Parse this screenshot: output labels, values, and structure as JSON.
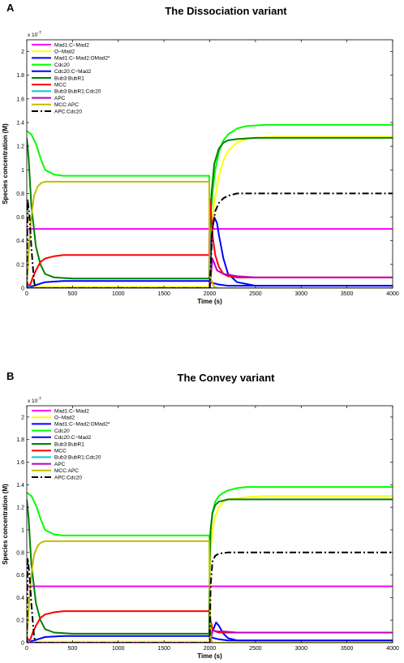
{
  "chart_data": [
    {
      "type": "line",
      "panel_letter": "A",
      "title": "The Dissociation variant",
      "xlabel": "Time (s)",
      "ylabel": "Species concentration (M)",
      "y_exponent_label": "x 10",
      "y_exponent_power": "-7",
      "xlim": [
        0,
        4000
      ],
      "ylim": [
        0,
        2.1
      ],
      "xticks": [
        "0",
        "500",
        "1000",
        "1500",
        "2000",
        "2500",
        "3000",
        "3500",
        "4000"
      ],
      "yticks": [
        "0",
        "0.2",
        "0.4",
        "0.6",
        "0.8",
        "1",
        "1.2",
        "1.4",
        "1.6",
        "1.8",
        "2"
      ],
      "legend_position": "top-left",
      "series": [
        {
          "name": "Mad1:C−Mad2",
          "color": "#ff00ff",
          "dash": "",
          "x": [
            0,
            10,
            1995,
            2000,
            4000
          ],
          "y": [
            0.5,
            0.5,
            0.5,
            0.5,
            0.5
          ]
        },
        {
          "name": "O−Mad2",
          "color": "#ffff00",
          "dash": "",
          "x": [
            0,
            20,
            1995,
            2000,
            2005,
            2020,
            2050,
            2100,
            2150,
            2200,
            2300,
            2400,
            2500,
            2700,
            3000,
            4000
          ],
          "y": [
            0,
            0.01,
            0.01,
            0.3,
            0.45,
            0.55,
            0.72,
            0.95,
            1.08,
            1.16,
            1.23,
            1.26,
            1.27,
            1.28,
            1.28,
            1.28
          ]
        },
        {
          "name": "Mad1:C−Mad2:OMad2*",
          "color": "#0000ff",
          "dash": "",
          "x": [
            0,
            20,
            1995,
            2000,
            2020,
            2050,
            2080,
            2100,
            2150,
            2200,
            2300,
            2500,
            3000,
            4000
          ],
          "y": [
            0,
            0.0,
            0.0,
            0.0,
            0.45,
            0.6,
            0.55,
            0.45,
            0.25,
            0.12,
            0.05,
            0.02,
            0.02,
            0.02
          ]
        },
        {
          "name": "Cdc20",
          "color": "#00ff00",
          "dash": "",
          "x": [
            0,
            50,
            100,
            150,
            200,
            300,
            400,
            600,
            1000,
            1995,
            2000,
            2010,
            2030,
            2060,
            2100,
            2150,
            2200,
            2300,
            2400,
            2600,
            3000,
            4000
          ],
          "y": [
            1.33,
            1.3,
            1.22,
            1.1,
            1.0,
            0.96,
            0.95,
            0.95,
            0.95,
            0.95,
            0.55,
            0.6,
            0.8,
            1.0,
            1.15,
            1.25,
            1.3,
            1.35,
            1.37,
            1.38,
            1.38,
            1.38
          ]
        },
        {
          "name": "Cdc20:C−Mad2",
          "color": "#0000ff",
          "dash": "",
          "x": [
            0,
            30,
            80,
            200,
            400,
            1000,
            1995,
            2000,
            2050,
            2100,
            2200,
            2500,
            4000
          ],
          "y": [
            0.05,
            0.01,
            0.02,
            0.05,
            0.06,
            0.06,
            0.06,
            0.05,
            0.04,
            0.03,
            0.02,
            0.02,
            0.02
          ]
        },
        {
          "name": "Bub3:BubR1",
          "color": "#008000",
          "dash": "",
          "x": [
            0,
            20,
            50,
            100,
            150,
            200,
            300,
            500,
            1000,
            1995,
            2000,
            2020,
            2050,
            2100,
            2150,
            2200,
            2300,
            2500,
            3000,
            4000
          ],
          "y": [
            1.27,
            1.1,
            0.7,
            0.35,
            0.2,
            0.12,
            0.09,
            0.08,
            0.08,
            0.08,
            0.45,
            0.8,
            1.05,
            1.18,
            1.23,
            1.25,
            1.26,
            1.27,
            1.27,
            1.27
          ]
        },
        {
          "name": "MCC",
          "color": "#ff0000",
          "dash": "",
          "x": [
            0,
            20,
            40,
            60,
            100,
            150,
            200,
            300,
            400,
            1000,
            1995,
            2000,
            2010,
            2030,
            2060,
            2100,
            2150,
            2200,
            2300,
            2500,
            3000,
            4000
          ],
          "y": [
            0.05,
            0.02,
            0.03,
            0.08,
            0.15,
            0.22,
            0.25,
            0.27,
            0.28,
            0.28,
            0.28,
            0.75,
            0.7,
            0.45,
            0.28,
            0.18,
            0.12,
            0.1,
            0.09,
            0.09,
            0.09,
            0.09
          ]
        },
        {
          "name": "Bub3:BubR1:Cdc20",
          "color": "#00cccc",
          "dash": "",
          "x": [
            0,
            10,
            30,
            60,
            1995,
            2000,
            2100,
            4000
          ],
          "y": [
            0.03,
            0.02,
            0.005,
            0.0,
            0.0,
            0.0,
            0.0,
            0.0
          ]
        },
        {
          "name": "APC",
          "color": "#bf00bf",
          "dash": "",
          "x": [
            0,
            20,
            40,
            1995,
            2000,
            2030,
            2080,
            2150,
            2300,
            2500,
            4000
          ],
          "y": [
            0.02,
            0.0,
            0.0,
            0.0,
            0.0,
            0.25,
            0.15,
            0.12,
            0.1,
            0.09,
            0.09
          ]
        },
        {
          "name": "MCC:APC",
          "color": "#bfbf00",
          "dash": "",
          "x": [
            0,
            20,
            50,
            80,
            120,
            160,
            200,
            300,
            500,
            1000,
            1995,
            2000,
            2050,
            2100,
            2200,
            4000
          ],
          "y": [
            0.0,
            0.3,
            0.6,
            0.78,
            0.86,
            0.89,
            0.9,
            0.9,
            0.9,
            0.9,
            0.9,
            0.1,
            0.01,
            0.0,
            0.0,
            0.0
          ]
        },
        {
          "name": "APC:Cdc20",
          "color": "#000000",
          "dash": "8,3,2,3",
          "x": [
            0,
            10,
            30,
            50,
            80,
            100,
            150,
            1995,
            2000,
            2030,
            2060,
            2100,
            2150,
            2200,
            2300,
            2500,
            3000,
            4000
          ],
          "y": [
            0.0,
            0.75,
            0.6,
            0.35,
            0.05,
            0.0,
            0.0,
            0.0,
            0.0,
            0.5,
            0.65,
            0.72,
            0.76,
            0.78,
            0.8,
            0.8,
            0.8,
            0.8
          ]
        }
      ]
    },
    {
      "type": "line",
      "panel_letter": "B",
      "title": "The Convey variant",
      "xlabel": "Time (s)",
      "ylabel": "Species concentration (M)",
      "y_exponent_label": "x 10",
      "y_exponent_power": "-7",
      "xlim": [
        0,
        4000
      ],
      "ylim": [
        0,
        2.1
      ],
      "xticks": [
        "0",
        "500",
        "1000",
        "1500",
        "2000",
        "2500",
        "3000",
        "3500",
        "4000"
      ],
      "yticks": [
        "0",
        "0.2",
        "0.4",
        "0.6",
        "0.8",
        "1",
        "1.2",
        "1.4",
        "1.6",
        "1.8",
        "2"
      ],
      "legend_position": "top-left",
      "series": [
        {
          "name": "Mad1:C−Mad2",
          "color": "#ff00ff",
          "dash": "",
          "x": [
            0,
            10,
            1995,
            2000,
            4000
          ],
          "y": [
            0.5,
            0.5,
            0.5,
            0.5,
            0.5
          ]
        },
        {
          "name": "O−Mad2",
          "color": "#ffff00",
          "dash": "",
          "x": [
            0,
            20,
            1995,
            2000,
            2010,
            2030,
            2060,
            2100,
            2150,
            2200,
            2300,
            2400,
            2600,
            3000,
            4000
          ],
          "y": [
            0,
            0.01,
            0.01,
            0.6,
            0.8,
            1.0,
            1.12,
            1.2,
            1.25,
            1.27,
            1.28,
            1.29,
            1.3,
            1.3,
            1.3
          ]
        },
        {
          "name": "Mad1:C−Mad2:OMad2*",
          "color": "#0000ff",
          "dash": "",
          "x": [
            0,
            20,
            1995,
            2000,
            2030,
            2070,
            2100,
            2150,
            2200,
            2300,
            2500,
            4000
          ],
          "y": [
            0,
            0.0,
            0.0,
            0.0,
            0.1,
            0.18,
            0.15,
            0.08,
            0.04,
            0.02,
            0.02,
            0.02
          ]
        },
        {
          "name": "Cdc20",
          "color": "#00ff00",
          "dash": "",
          "x": [
            0,
            50,
            100,
            150,
            200,
            300,
            400,
            600,
            1000,
            1995,
            2000,
            2010,
            2030,
            2060,
            2100,
            2150,
            2200,
            2300,
            2400,
            2600,
            3000,
            4000
          ],
          "y": [
            1.33,
            1.3,
            1.22,
            1.1,
            1.0,
            0.96,
            0.95,
            0.95,
            0.95,
            0.95,
            0.9,
            1.0,
            1.15,
            1.25,
            1.3,
            1.33,
            1.35,
            1.37,
            1.38,
            1.38,
            1.38,
            1.38
          ]
        },
        {
          "name": "Cdc20:C−Mad2",
          "color": "#0000ff",
          "dash": "",
          "x": [
            0,
            30,
            80,
            200,
            400,
            1000,
            1995,
            2000,
            2050,
            2100,
            2200,
            2500,
            4000
          ],
          "y": [
            0.05,
            0.01,
            0.02,
            0.05,
            0.06,
            0.06,
            0.06,
            0.05,
            0.04,
            0.03,
            0.02,
            0.02,
            0.02
          ]
        },
        {
          "name": "Bub3:BubR1",
          "color": "#008000",
          "dash": "",
          "x": [
            0,
            20,
            50,
            100,
            150,
            200,
            300,
            500,
            1000,
            1995,
            2000,
            2010,
            2030,
            2060,
            2100,
            2150,
            2200,
            2300,
            2500,
            3000,
            4000
          ],
          "y": [
            1.27,
            1.1,
            0.7,
            0.35,
            0.2,
            0.12,
            0.09,
            0.08,
            0.08,
            0.08,
            0.7,
            1.0,
            1.15,
            1.22,
            1.25,
            1.26,
            1.27,
            1.27,
            1.27,
            1.27,
            1.27
          ]
        },
        {
          "name": "MCC",
          "color": "#ff0000",
          "dash": "",
          "x": [
            0,
            20,
            40,
            60,
            100,
            150,
            200,
            300,
            400,
            1000,
            1995,
            2000,
            2010,
            2030,
            2060,
            2100,
            2200,
            2500,
            3000,
            4000
          ],
          "y": [
            0.05,
            0.02,
            0.03,
            0.08,
            0.15,
            0.22,
            0.25,
            0.27,
            0.28,
            0.28,
            0.28,
            0.28,
            0.2,
            0.12,
            0.1,
            0.09,
            0.09,
            0.09,
            0.09,
            0.09
          ]
        },
        {
          "name": "Bub3:BubR1:Cdc20",
          "color": "#00cccc",
          "dash": "",
          "x": [
            0,
            10,
            30,
            60,
            1995,
            2000,
            2100,
            4000
          ],
          "y": [
            0.03,
            0.02,
            0.005,
            0.0,
            0.0,
            0.0,
            0.0,
            0.0
          ]
        },
        {
          "name": "APC",
          "color": "#bf00bf",
          "dash": "",
          "x": [
            0,
            20,
            40,
            1995,
            2000,
            2030,
            2080,
            2150,
            2300,
            2500,
            4000
          ],
          "y": [
            0.02,
            0.0,
            0.0,
            0.0,
            0.0,
            0.11,
            0.1,
            0.1,
            0.09,
            0.09,
            0.09
          ]
        },
        {
          "name": "MCC:APC",
          "color": "#bfbf00",
          "dash": "",
          "x": [
            0,
            20,
            50,
            80,
            120,
            160,
            200,
            300,
            500,
            1000,
            1995,
            2000,
            2010,
            2030,
            2100,
            4000
          ],
          "y": [
            0.0,
            0.3,
            0.6,
            0.78,
            0.86,
            0.89,
            0.9,
            0.9,
            0.9,
            0.9,
            0.9,
            0.5,
            0.05,
            0.0,
            0.0,
            0.0
          ]
        },
        {
          "name": "APC:Cdc20",
          "color": "#000000",
          "dash": "8,3,2,3",
          "x": [
            0,
            10,
            30,
            50,
            80,
            100,
            150,
            1995,
            2000,
            2010,
            2030,
            2060,
            2100,
            2200,
            2500,
            3000,
            4000
          ],
          "y": [
            0.0,
            0.75,
            0.6,
            0.35,
            0.05,
            0.0,
            0.0,
            0.0,
            0.0,
            0.5,
            0.72,
            0.77,
            0.79,
            0.8,
            0.8,
            0.8,
            0.8
          ]
        }
      ]
    }
  ]
}
